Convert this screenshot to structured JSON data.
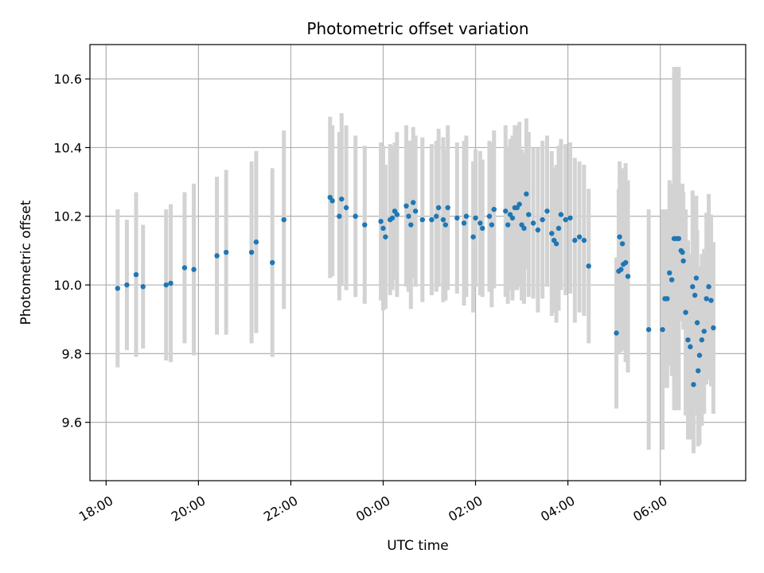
{
  "chart_data": {
    "type": "scatter",
    "title": "Photometric offset variation",
    "xlabel": "UTC time",
    "ylabel": "Photometric offset",
    "x_unit": "hours",
    "x_origin_label": "00:00",
    "xlim": [
      -6.35,
      7.85
    ],
    "ylim": [
      9.43,
      10.7
    ],
    "grid": true,
    "colors": {
      "points": "#1f77b4",
      "errorbars": "#d3d3d3",
      "grid": "#b0b0b0"
    },
    "x_ticks": [
      {
        "v": -6,
        "label": "18:00"
      },
      {
        "v": -4,
        "label": "20:00"
      },
      {
        "v": -2,
        "label": "22:00"
      },
      {
        "v": 0,
        "label": "00:00"
      },
      {
        "v": 2,
        "label": "02:00"
      },
      {
        "v": 4,
        "label": "04:00"
      },
      {
        "v": 6,
        "label": "06:00"
      }
    ],
    "y_ticks": [
      {
        "v": 9.6,
        "label": "9.6"
      },
      {
        "v": 9.8,
        "label": "9.8"
      },
      {
        "v": 10.0,
        "label": "10.0"
      },
      {
        "v": 10.2,
        "label": "10.2"
      },
      {
        "v": 10.4,
        "label": "10.4"
      },
      {
        "v": 10.6,
        "label": "10.6"
      }
    ],
    "points": [
      [
        -5.75,
        9.99,
        0.23
      ],
      [
        -5.55,
        10.0,
        0.19
      ],
      [
        -5.35,
        10.03,
        0.24
      ],
      [
        -5.2,
        9.995,
        0.18
      ],
      [
        -4.7,
        10.0,
        0.22
      ],
      [
        -4.6,
        10.005,
        0.23
      ],
      [
        -4.3,
        10.05,
        0.22
      ],
      [
        -4.1,
        10.045,
        0.25
      ],
      [
        -3.6,
        10.085,
        0.23
      ],
      [
        -3.4,
        10.095,
        0.24
      ],
      [
        -2.85,
        10.095,
        0.265
      ],
      [
        -2.75,
        10.125,
        0.265
      ],
      [
        -2.4,
        10.065,
        0.275
      ],
      [
        -2.15,
        10.19,
        0.26
      ],
      [
        -1.15,
        10.255,
        0.235
      ],
      [
        -1.1,
        10.245,
        0.22
      ],
      [
        -0.95,
        10.2,
        0.245
      ],
      [
        -0.9,
        10.25,
        0.25
      ],
      [
        -0.8,
        10.225,
        0.24
      ],
      [
        -0.6,
        10.2,
        0.235
      ],
      [
        -0.4,
        10.175,
        0.23
      ],
      [
        -0.05,
        10.185,
        0.23
      ],
      [
        0.0,
        10.165,
        0.24
      ],
      [
        0.05,
        10.14,
        0.21
      ],
      [
        0.15,
        10.19,
        0.22
      ],
      [
        0.2,
        10.195,
        0.21
      ],
      [
        0.25,
        10.215,
        0.2
      ],
      [
        0.3,
        10.205,
        0.24
      ],
      [
        0.5,
        10.23,
        0.235
      ],
      [
        0.55,
        10.2,
        0.22
      ],
      [
        0.6,
        10.175,
        0.245
      ],
      [
        0.65,
        10.24,
        0.22
      ],
      [
        0.7,
        10.215,
        0.22
      ],
      [
        0.85,
        10.19,
        0.24
      ],
      [
        1.05,
        10.19,
        0.22
      ],
      [
        1.15,
        10.2,
        0.22
      ],
      [
        1.2,
        10.225,
        0.23
      ],
      [
        1.3,
        10.19,
        0.24
      ],
      [
        1.35,
        10.175,
        0.22
      ],
      [
        1.4,
        10.225,
        0.24
      ],
      [
        1.6,
        10.195,
        0.22
      ],
      [
        1.75,
        10.18,
        0.24
      ],
      [
        1.8,
        10.2,
        0.235
      ],
      [
        1.95,
        10.14,
        0.22
      ],
      [
        2.0,
        10.195,
        0.2
      ],
      [
        2.1,
        10.18,
        0.21
      ],
      [
        2.15,
        10.165,
        0.2
      ],
      [
        2.3,
        10.2,
        0.22
      ],
      [
        2.35,
        10.175,
        0.24
      ],
      [
        2.4,
        10.22,
        0.23
      ],
      [
        2.65,
        10.215,
        0.25
      ],
      [
        2.7,
        10.175,
        0.23
      ],
      [
        2.75,
        10.205,
        0.22
      ],
      [
        2.8,
        10.195,
        0.24
      ],
      [
        2.85,
        10.225,
        0.24
      ],
      [
        2.9,
        10.225,
        0.24
      ],
      [
        2.95,
        10.235,
        0.24
      ],
      [
        3.0,
        10.175,
        0.22
      ],
      [
        3.05,
        10.165,
        0.22
      ],
      [
        3.1,
        10.265,
        0.22
      ],
      [
        3.15,
        10.205,
        0.24
      ],
      [
        3.25,
        10.18,
        0.22
      ],
      [
        3.35,
        10.16,
        0.24
      ],
      [
        3.45,
        10.19,
        0.23
      ],
      [
        3.55,
        10.215,
        0.22
      ],
      [
        3.65,
        10.15,
        0.24
      ],
      [
        3.7,
        10.13,
        0.21
      ],
      [
        3.75,
        10.12,
        0.23
      ],
      [
        3.8,
        10.165,
        0.24
      ],
      [
        3.85,
        10.205,
        0.22
      ],
      [
        3.95,
        10.19,
        0.22
      ],
      [
        4.05,
        10.195,
        0.22
      ],
      [
        4.15,
        10.13,
        0.24
      ],
      [
        4.25,
        10.14,
        0.22
      ],
      [
        4.35,
        10.13,
        0.22
      ],
      [
        4.45,
        10.055,
        0.225
      ],
      [
        5.05,
        9.86,
        0.22
      ],
      [
        5.1,
        10.04,
        0.24
      ],
      [
        5.15,
        10.045,
        0.24
      ],
      [
        5.2,
        10.06,
        0.25
      ],
      [
        5.25,
        10.065,
        0.29
      ],
      [
        5.3,
        10.025,
        0.28
      ],
      [
        5.75,
        9.87,
        0.35
      ],
      [
        6.05,
        9.87,
        0.35
      ],
      [
        6.1,
        9.96,
        0.26
      ],
      [
        6.15,
        9.96,
        0.26
      ],
      [
        6.2,
        10.035,
        0.27
      ],
      [
        6.25,
        10.015,
        0.28
      ],
      [
        6.3,
        10.135,
        0.5
      ],
      [
        6.35,
        10.135,
        0.5
      ],
      [
        6.4,
        10.135,
        0.5
      ],
      [
        6.45,
        10.1,
        0.19
      ],
      [
        6.5,
        10.07,
        0.2
      ],
      [
        6.55,
        9.92,
        0.3
      ],
      [
        6.6,
        9.84,
        0.29
      ],
      [
        6.65,
        9.82,
        0.27
      ],
      [
        6.7,
        9.995,
        0.28
      ],
      [
        6.75,
        9.97,
        0.26
      ],
      [
        6.8,
        9.89,
        0.27
      ],
      [
        6.85,
        9.795,
        0.26
      ],
      [
        6.9,
        9.84,
        0.25
      ],
      [
        6.95,
        9.865,
        0.24
      ],
      [
        7.0,
        9.96,
        0.25
      ],
      [
        7.05,
        9.995,
        0.27
      ],
      [
        7.1,
        9.955,
        0.25
      ],
      [
        7.15,
        9.875,
        0.25
      ],
      [
        6.72,
        9.71,
        0.2
      ],
      [
        6.82,
        9.75,
        0.22
      ],
      [
        5.12,
        10.14,
        0.22
      ],
      [
        5.18,
        10.12,
        0.22
      ],
      [
        6.48,
        10.095,
        0.2
      ],
      [
        6.78,
        10.02,
        0.24
      ]
    ]
  }
}
